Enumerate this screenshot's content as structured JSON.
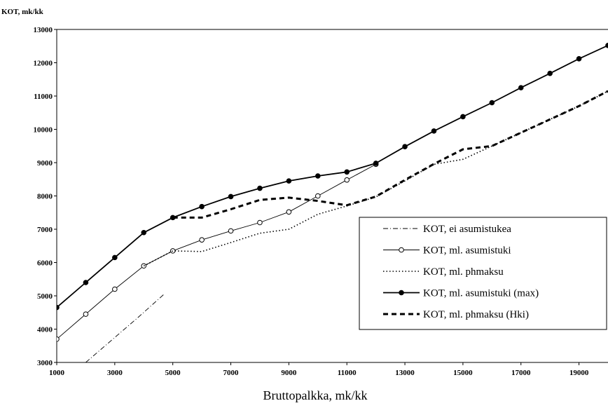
{
  "chart_data": {
    "type": "line",
    "ylabel": "KOT, mk/kk",
    "xlabel": "Bruttopalkka, mk/kk",
    "xlim": [
      1000,
      20000
    ],
    "ylim": [
      3000,
      13000
    ],
    "x_ticks": [
      1000,
      3000,
      5000,
      7000,
      9000,
      11000,
      13000,
      15000,
      17000,
      19000
    ],
    "y_ticks": [
      3000,
      4000,
      5000,
      6000,
      7000,
      8000,
      9000,
      10000,
      11000,
      12000,
      13000
    ],
    "grid": false,
    "legend_position": "lower-right",
    "series": [
      {
        "name": "KOT, ei asumistukea",
        "style": "thin-dashdot",
        "color": "#000000",
        "points": [
          [
            2000,
            3000
          ],
          [
            2800,
            3600
          ],
          [
            3800,
            4350
          ],
          [
            4700,
            5050
          ]
        ]
      },
      {
        "name": "KOT, ml. asumistuki",
        "style": "thin-solid-open-circle",
        "color": "#000000",
        "points": [
          [
            1000,
            3700
          ],
          [
            2000,
            4450
          ],
          [
            3000,
            5200
          ],
          [
            4000,
            5900
          ],
          [
            5000,
            6350
          ],
          [
            6000,
            6680
          ],
          [
            7000,
            6950
          ],
          [
            8000,
            7200
          ],
          [
            9000,
            7520
          ],
          [
            10000,
            8000
          ],
          [
            11000,
            8480
          ],
          [
            12000,
            8950
          ]
        ]
      },
      {
        "name": "KOT, ml. phmaksu",
        "style": "dotted",
        "color": "#000000",
        "points": [
          [
            4000,
            5900
          ],
          [
            5000,
            6350
          ],
          [
            6000,
            6330
          ],
          [
            7000,
            6600
          ],
          [
            8000,
            6880
          ],
          [
            9000,
            7000
          ],
          [
            10000,
            7450
          ],
          [
            11000,
            7700
          ],
          [
            12000,
            7970
          ],
          [
            13000,
            8450
          ],
          [
            14000,
            8950
          ],
          [
            15000,
            9100
          ],
          [
            16000,
            9500
          ],
          [
            17000,
            9900
          ],
          [
            18000,
            10300
          ],
          [
            19000,
            10700
          ],
          [
            20000,
            11150
          ]
        ]
      },
      {
        "name": "KOT, ml. asumistuki (max)",
        "style": "solid-filled-circle",
        "color": "#000000",
        "points": [
          [
            1000,
            4650
          ],
          [
            2000,
            5400
          ],
          [
            3000,
            6150
          ],
          [
            4000,
            6900
          ],
          [
            5000,
            7350
          ],
          [
            6000,
            7680
          ],
          [
            7000,
            7980
          ],
          [
            8000,
            8230
          ],
          [
            9000,
            8450
          ],
          [
            10000,
            8600
          ],
          [
            11000,
            8720
          ],
          [
            12000,
            8980
          ],
          [
            13000,
            9480
          ],
          [
            14000,
            9950
          ],
          [
            15000,
            10380
          ],
          [
            16000,
            10800
          ],
          [
            17000,
            11250
          ],
          [
            18000,
            11680
          ],
          [
            19000,
            12120
          ],
          [
            20000,
            12520
          ]
        ]
      },
      {
        "name": "KOT, ml. phmaksu (Hki)",
        "style": "thick-dashed",
        "color": "#000000",
        "points": [
          [
            5000,
            7350
          ],
          [
            6000,
            7350
          ],
          [
            7000,
            7600
          ],
          [
            8000,
            7880
          ],
          [
            9000,
            7950
          ],
          [
            10000,
            7850
          ],
          [
            11000,
            7720
          ],
          [
            12000,
            7980
          ],
          [
            13000,
            8480
          ],
          [
            14000,
            8960
          ],
          [
            15000,
            9400
          ],
          [
            16000,
            9500
          ],
          [
            17000,
            9900
          ],
          [
            18000,
            10300
          ],
          [
            19000,
            10700
          ],
          [
            20000,
            11150
          ]
        ]
      }
    ]
  }
}
